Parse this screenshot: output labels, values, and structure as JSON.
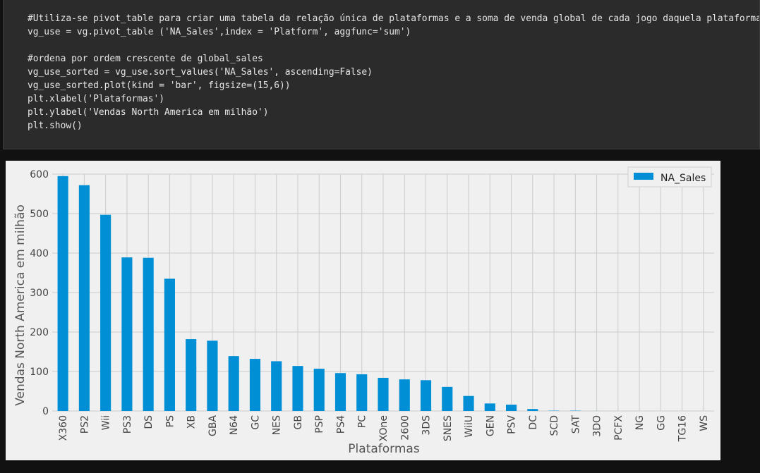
{
  "code_cell": {
    "lines": [
      "#Utiliza-se pivot_table para criar uma tabela da relação única de plataformas e a soma de venda global de cada jogo daquela plataforma",
      "vg_use = vg.pivot_table ('NA_Sales',index = 'Platform', aggfunc='sum')",
      "",
      "#ordena por ordem crescente de global_sales",
      "vg_use_sorted = vg_use.sort_values('NA_Sales', ascending=False)",
      "vg_use_sorted.plot(kind = 'bar', figsize=(15,6))",
      "plt.xlabel('Plataformas')",
      "plt.ylabel('Vendas North America em milhão')",
      "plt.show()"
    ]
  },
  "colors": {
    "bar": "#008fd5",
    "grid": "#cbcbcb",
    "plot_bg": "#f0f0f0",
    "tick_text": "#444444",
    "label_text": "#555555"
  },
  "chart_data": {
    "type": "bar",
    "xlabel": "Plataformas",
    "ylabel": "Vendas North America em milhão",
    "ylim": [
      0,
      600
    ],
    "yticks": [
      0,
      100,
      200,
      300,
      400,
      500,
      600
    ],
    "grid": true,
    "legend_placement": "top-right",
    "series": [
      {
        "name": "NA_Sales",
        "values": [
          595,
          572,
          497,
          389,
          388,
          335,
          182,
          178,
          139,
          132,
          126,
          114,
          107,
          96,
          93,
          84,
          80,
          78,
          61,
          38,
          19,
          16,
          5,
          0.7,
          0.7,
          0.1,
          0,
          0,
          0,
          0,
          0
        ]
      }
    ],
    "categories": [
      "X360",
      "PS2",
      "Wii",
      "PS3",
      "DS",
      "PS",
      "XB",
      "GBA",
      "N64",
      "GC",
      "NES",
      "GB",
      "PSP",
      "PS4",
      "PC",
      "XOne",
      "2600",
      "3DS",
      "SNES",
      "WiiU",
      "GEN",
      "PSV",
      "DC",
      "SCD",
      "SAT",
      "3DO",
      "PCFX",
      "NG",
      "GG",
      "TG16",
      "WS"
    ]
  }
}
